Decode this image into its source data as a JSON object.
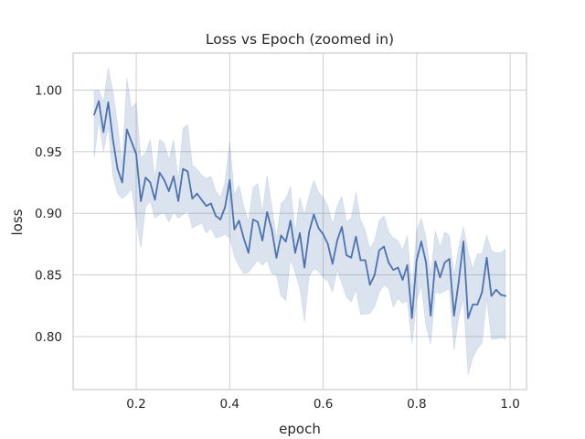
{
  "chart_data": {
    "type": "line",
    "title": "Loss vs Epoch (zoomed in)",
    "xlabel": "epoch",
    "ylabel": "loss",
    "xlim": [
      0.065,
      1.035
    ],
    "ylim": [
      0.757,
      1.03
    ],
    "xticks": [
      "0.2",
      "0.4",
      "0.6",
      "0.8",
      "1.0"
    ],
    "yticks": [
      "0.80",
      "0.85",
      "0.90",
      "0.95",
      "1.00"
    ],
    "grid": true,
    "legend": "none",
    "colors": {
      "line": "#4c72b0",
      "band": "#4c72b0"
    },
    "series": [
      {
        "x": [
          0.11,
          0.12,
          0.13,
          0.14,
          0.15,
          0.16,
          0.17,
          0.18,
          0.19,
          0.2,
          0.21,
          0.22,
          0.23,
          0.24,
          0.25,
          0.26,
          0.27,
          0.28,
          0.29,
          0.3,
          0.31,
          0.32,
          0.33,
          0.34,
          0.35,
          0.36,
          0.37,
          0.38,
          0.39,
          0.4,
          0.41,
          0.42,
          0.43,
          0.44,
          0.45,
          0.46,
          0.47,
          0.48,
          0.49,
          0.5,
          0.51,
          0.52,
          0.53,
          0.54,
          0.55,
          0.56,
          0.57,
          0.58,
          0.59,
          0.6,
          0.61,
          0.62,
          0.63,
          0.64,
          0.65,
          0.66,
          0.67,
          0.68,
          0.69,
          0.7,
          0.71,
          0.72,
          0.73,
          0.74,
          0.75,
          0.76,
          0.77,
          0.78,
          0.79,
          0.8,
          0.81,
          0.82,
          0.83,
          0.84,
          0.85,
          0.86,
          0.87,
          0.88,
          0.89,
          0.9,
          0.91,
          0.92,
          0.93,
          0.94,
          0.95,
          0.96,
          0.97,
          0.98,
          0.99
        ],
        "y": [
          0.98,
          0.991,
          0.966,
          0.99,
          0.96,
          0.936,
          0.925,
          0.968,
          0.958,
          0.948,
          0.91,
          0.929,
          0.925,
          0.911,
          0.933,
          0.927,
          0.918,
          0.93,
          0.91,
          0.936,
          0.934,
          0.912,
          0.916,
          0.911,
          0.906,
          0.908,
          0.898,
          0.895,
          0.905,
          0.927,
          0.887,
          0.894,
          0.88,
          0.868,
          0.895,
          0.893,
          0.878,
          0.901,
          0.887,
          0.864,
          0.882,
          0.877,
          0.894,
          0.868,
          0.884,
          0.856,
          0.885,
          0.899,
          0.888,
          0.883,
          0.875,
          0.859,
          0.878,
          0.889,
          0.866,
          0.864,
          0.881,
          0.862,
          0.862,
          0.842,
          0.85,
          0.87,
          0.873,
          0.86,
          0.854,
          0.856,
          0.846,
          0.858,
          0.815,
          0.862,
          0.877,
          0.86,
          0.817,
          0.861,
          0.848,
          0.86,
          0.863,
          0.817,
          0.845,
          0.877,
          0.815,
          0.826,
          0.826,
          0.836,
          0.864,
          0.833,
          0.838,
          0.834,
          0.833
        ],
        "lower": [
          0.945,
          0.975,
          0.95,
          0.97,
          0.93,
          0.916,
          0.912,
          0.915,
          0.92,
          0.895,
          0.872,
          0.905,
          0.91,
          0.896,
          0.899,
          0.9,
          0.893,
          0.901,
          0.896,
          0.899,
          0.902,
          0.888,
          0.89,
          0.892,
          0.884,
          0.888,
          0.88,
          0.881,
          0.883,
          0.88,
          0.865,
          0.857,
          0.851,
          0.852,
          0.857,
          0.862,
          0.858,
          0.862,
          0.851,
          0.85,
          0.833,
          0.829,
          0.863,
          0.852,
          0.839,
          0.812,
          0.849,
          0.855,
          0.853,
          0.848,
          0.845,
          0.836,
          0.854,
          0.843,
          0.832,
          0.828,
          0.838,
          0.818,
          0.818,
          0.819,
          0.824,
          0.836,
          0.842,
          0.839,
          0.824,
          0.831,
          0.827,
          0.829,
          0.794,
          0.829,
          0.842,
          0.808,
          0.794,
          0.836,
          0.835,
          0.837,
          0.839,
          0.789,
          0.816,
          0.831,
          0.769,
          0.783,
          0.79,
          0.795,
          0.831,
          0.798,
          0.798,
          0.799,
          0.798
        ],
        "upper": [
          0.999,
          1.0,
          0.99,
          1.018,
          0.999,
          0.972,
          0.94,
          1.01,
          0.985,
          0.99,
          0.945,
          0.949,
          0.96,
          0.928,
          0.96,
          0.957,
          0.943,
          0.96,
          0.927,
          0.969,
          0.972,
          0.939,
          0.936,
          0.931,
          0.928,
          0.93,
          0.918,
          0.913,
          0.925,
          0.958,
          0.915,
          0.923,
          0.906,
          0.893,
          0.921,
          0.924,
          0.901,
          0.931,
          0.906,
          0.88,
          0.908,
          0.912,
          0.922,
          0.885,
          0.913,
          0.899,
          0.914,
          0.927,
          0.917,
          0.913,
          0.906,
          0.891,
          0.906,
          0.914,
          0.893,
          0.896,
          0.917,
          0.895,
          0.886,
          0.871,
          0.878,
          0.894,
          0.898,
          0.885,
          0.88,
          0.878,
          0.87,
          0.882,
          0.838,
          0.886,
          0.896,
          0.88,
          0.85,
          0.886,
          0.872,
          0.885,
          0.882,
          0.85,
          0.873,
          0.889,
          0.869,
          0.855,
          0.867,
          0.867,
          0.882,
          0.87,
          0.868,
          0.868,
          0.871
        ]
      }
    ]
  }
}
